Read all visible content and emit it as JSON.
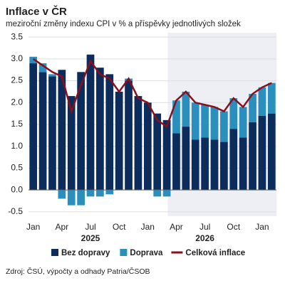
{
  "chart_data": {
    "type": "bar",
    "title": "Inflace v ČR",
    "subtitle": "meziroční změny indexu CPI v % a příspěvky jednotlivých složek",
    "source": "Zdroj: ČSÚ, výpočty a odhady Patria/ČSOB",
    "categories": [
      "Jan",
      null,
      null,
      "Apr",
      null,
      null,
      "Jul",
      null,
      null,
      "Oct",
      null,
      null,
      "Jan",
      null,
      null,
      "Apr",
      null,
      null,
      "Jul",
      null,
      null,
      "Oct",
      null,
      null,
      "Jan",
      null
    ],
    "x_groups": [
      "2025",
      "2026"
    ],
    "series": [
      {
        "name": "Bez dopravy",
        "color": "#0c2c5c",
        "values": [
          2.9,
          2.7,
          2.6,
          2.75,
          2.15,
          2.7,
          3.1,
          2.8,
          2.65,
          2.25,
          2.5,
          2.15,
          2.0,
          1.75,
          1.6,
          1.3,
          1.45,
          1.15,
          1.2,
          1.15,
          1.1,
          1.4,
          1.2,
          1.55,
          1.7,
          1.75
        ]
      },
      {
        "name": "Doprava",
        "color": "#2b8fbe",
        "values": [
          0.15,
          0.2,
          0.05,
          -0.2,
          -0.35,
          -0.35,
          -0.15,
          -0.15,
          -0.1,
          0.0,
          0.05,
          0.0,
          0.0,
          -0.15,
          -0.15,
          0.75,
          0.8,
          0.85,
          0.75,
          0.75,
          0.7,
          0.7,
          0.7,
          0.65,
          0.65,
          0.7
        ]
      },
      {
        "name": "Celková inflace",
        "color": "#8a0f1c",
        "type": "line",
        "values": [
          3.0,
          2.85,
          2.7,
          2.6,
          1.8,
          2.4,
          2.95,
          2.65,
          2.55,
          2.25,
          2.55,
          2.1,
          2.0,
          1.6,
          1.45,
          2.05,
          2.25,
          2.0,
          1.95,
          1.9,
          1.8,
          2.1,
          1.9,
          2.2,
          2.35,
          2.45
        ]
      }
    ],
    "ylim": [
      -0.6,
      3.6
    ],
    "yticks": [
      -0.5,
      {
        "value": 0,
        "label": "0.0"
      },
      0.5,
      {
        "value": 1,
        "label": "1.0"
      },
      1.5,
      {
        "value": 2,
        "label": "2.0"
      },
      2.5,
      {
        "value": 3,
        "label": "3.0"
      },
      3.5
    ],
    "grid": true
  }
}
